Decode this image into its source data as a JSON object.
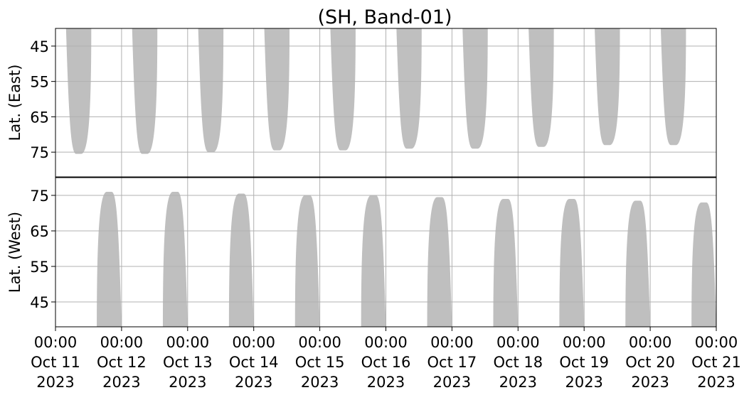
{
  "chart_data": {
    "type": "heatmap",
    "title": "(SH, Band-01)",
    "colors": {
      "coverage": "#bfbfbf",
      "grid": "#b0b0b0",
      "axis": "#000000"
    },
    "grid": true,
    "x": {
      "range": [
        "2023-10-11 00:00",
        "2023-10-21 00:00"
      ],
      "ticks": [
        {
          "time": "00:00",
          "date": "Oct 11",
          "year": "2023"
        },
        {
          "time": "00:00",
          "date": "Oct 12",
          "year": "2023"
        },
        {
          "time": "00:00",
          "date": "Oct 13",
          "year": "2023"
        },
        {
          "time": "00:00",
          "date": "Oct 14",
          "year": "2023"
        },
        {
          "time": "00:00",
          "date": "Oct 15",
          "year": "2023"
        },
        {
          "time": "00:00",
          "date": "Oct 16",
          "year": "2023"
        },
        {
          "time": "00:00",
          "date": "Oct 17",
          "year": "2023"
        },
        {
          "time": "00:00",
          "date": "Oct 18",
          "year": "2023"
        },
        {
          "time": "00:00",
          "date": "Oct 19",
          "year": "2023"
        },
        {
          "time": "00:00",
          "date": "Oct 20",
          "year": "2023"
        },
        {
          "time": "00:00",
          "date": "Oct 21",
          "year": "2023"
        }
      ]
    },
    "panels": [
      {
        "ylabel": "Lat. (East)",
        "ylim": [
          40,
          82
        ],
        "y_inverted": true,
        "yticks": [
          45,
          55,
          65,
          75
        ],
        "blobs": [
          {
            "start": "2023-10-11 03:50",
            "end": "2023-10-11 13:00",
            "peak_lat": 75.5
          },
          {
            "start": "2023-10-12 03:50",
            "end": "2023-10-12 13:00",
            "peak_lat": 75.5
          },
          {
            "start": "2023-10-13 03:50",
            "end": "2023-10-13 13:00",
            "peak_lat": 75
          },
          {
            "start": "2023-10-14 03:50",
            "end": "2023-10-14 13:00",
            "peak_lat": 74.5
          },
          {
            "start": "2023-10-15 03:50",
            "end": "2023-10-15 13:00",
            "peak_lat": 74.5
          },
          {
            "start": "2023-10-16 03:50",
            "end": "2023-10-16 13:00",
            "peak_lat": 74
          },
          {
            "start": "2023-10-17 03:50",
            "end": "2023-10-17 13:00",
            "peak_lat": 74
          },
          {
            "start": "2023-10-18 03:50",
            "end": "2023-10-18 13:00",
            "peak_lat": 73.5
          },
          {
            "start": "2023-10-19 03:50",
            "end": "2023-10-19 13:00",
            "peak_lat": 73
          },
          {
            "start": "2023-10-20 03:50",
            "end": "2023-10-20 13:00",
            "peak_lat": 73
          }
        ]
      },
      {
        "ylabel": "Lat. (West)",
        "ylim": [
          38,
          80
        ],
        "y_inverted": false,
        "yticks": [
          45,
          55,
          65,
          75
        ],
        "blobs": [
          {
            "start": "2023-10-11 15:00",
            "end": "2023-10-11 24:00",
            "peak_lat": 76
          },
          {
            "start": "2023-10-12 15:00",
            "end": "2023-10-12 24:00",
            "peak_lat": 76
          },
          {
            "start": "2023-10-13 15:00",
            "end": "2023-10-13 24:00",
            "peak_lat": 75.5
          },
          {
            "start": "2023-10-14 15:00",
            "end": "2023-10-14 24:00",
            "peak_lat": 75
          },
          {
            "start": "2023-10-15 15:00",
            "end": "2023-10-15 24:00",
            "peak_lat": 75
          },
          {
            "start": "2023-10-16 15:00",
            "end": "2023-10-16 24:00",
            "peak_lat": 74.5
          },
          {
            "start": "2023-10-17 15:00",
            "end": "2023-10-17 24:00",
            "peak_lat": 74
          },
          {
            "start": "2023-10-18 15:00",
            "end": "2023-10-18 24:00",
            "peak_lat": 74
          },
          {
            "start": "2023-10-19 15:00",
            "end": "2023-10-19 24:00",
            "peak_lat": 73.5
          },
          {
            "start": "2023-10-20 15:00",
            "end": "2023-10-21 00:00",
            "peak_lat": 73
          }
        ]
      }
    ]
  }
}
